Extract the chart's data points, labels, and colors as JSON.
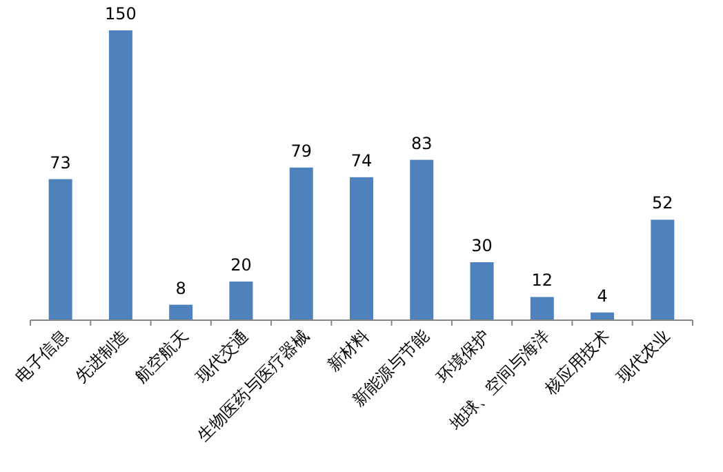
{
  "chart_data": {
    "type": "bar",
    "categories": [
      "电子信息",
      "先进制造",
      "航空航天",
      "现代交通",
      "生物医药与医疗器械",
      "新材料",
      "新能源与节能",
      "环境保护",
      "地球、空间与海洋",
      "核应用技术",
      "现代农业"
    ],
    "values": [
      73,
      150,
      8,
      20,
      79,
      74,
      83,
      30,
      12,
      4,
      52
    ],
    "color": "#4f81bd",
    "data_labels": true
  }
}
